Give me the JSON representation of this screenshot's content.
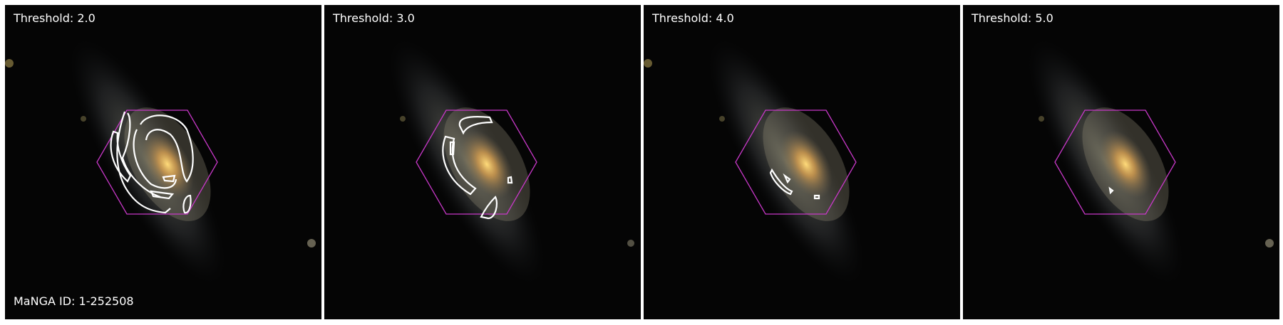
{
  "panels": [
    {
      "label": "Threshold: 2.0"
    },
    {
      "label": "Threshold: 3.0"
    },
    {
      "label": "Threshold: 4.0"
    },
    {
      "label": "Threshold: 5.0"
    }
  ],
  "id_label": "MaNGA ID: 1-252508",
  "colors": {
    "background": "#050505",
    "hexagon": "#c838c8",
    "contour": "#ffffff",
    "galaxy_core": "#f2c060"
  }
}
